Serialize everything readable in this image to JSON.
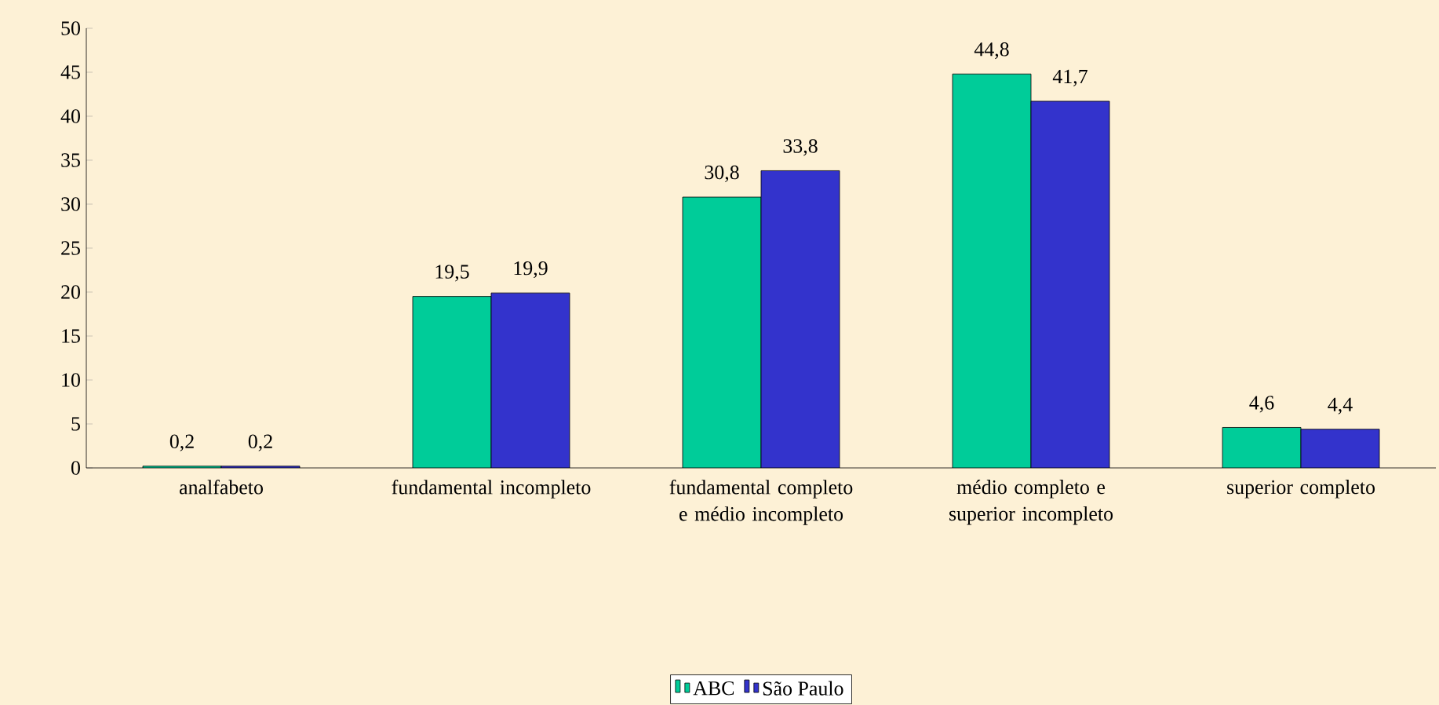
{
  "chart_data": {
    "type": "bar",
    "categories": [
      "analfabeto",
      "fundamental incompleto",
      "fundamental completo e médio incompleto",
      "médio completo e superior incompleto",
      "superior completo"
    ],
    "series": [
      {
        "name": "ABC",
        "color": "#00cc99",
        "values": [
          0.2,
          19.5,
          30.8,
          44.8,
          4.6
        ],
        "value_labels": [
          "0,2",
          "19,5",
          "30,8",
          "44,8",
          "4,6"
        ]
      },
      {
        "name": "São Paulo",
        "color": "#3333cc",
        "values": [
          0.2,
          19.9,
          33.8,
          41.7,
          4.4
        ],
        "value_labels": [
          "0,2",
          "19,9",
          "33,8",
          "41,7",
          "4,4"
        ]
      }
    ],
    "ylim": [
      0,
      50
    ],
    "yticks": [
      0,
      5,
      10,
      15,
      20,
      25,
      30,
      35,
      40,
      45,
      50
    ],
    "grid": false,
    "legend": "bottom"
  }
}
